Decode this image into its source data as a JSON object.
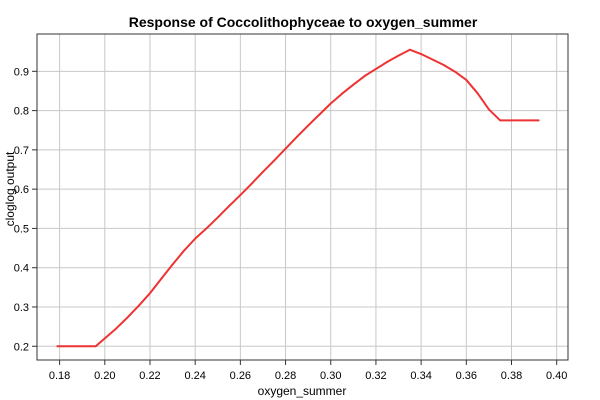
{
  "chart_data": {
    "type": "line",
    "title": "Response of Coccolithophyceae to oxygen_summer",
    "xlabel": "oxygen_summer",
    "ylabel": "cloglog output",
    "xlim": [
      0.17,
      0.405
    ],
    "ylim": [
      0.165,
      0.995
    ],
    "x_ticks": [
      0.18,
      0.2,
      0.22,
      0.24,
      0.26,
      0.28,
      0.3,
      0.32,
      0.34,
      0.36,
      0.38,
      0.4
    ],
    "x_tick_labels": [
      "0.18",
      "0.20",
      "0.22",
      "0.24",
      "0.26",
      "0.28",
      "0.30",
      "0.32",
      "0.34",
      "0.36",
      "0.38",
      "0.40"
    ],
    "y_ticks": [
      0.2,
      0.3,
      0.4,
      0.5,
      0.6,
      0.7,
      0.8,
      0.9
    ],
    "y_tick_labels": [
      "0.2",
      "0.3",
      "0.4",
      "0.5",
      "0.6",
      "0.7",
      "0.8",
      "0.9"
    ],
    "grid": true,
    "series": [
      {
        "color": "#ee3333",
        "x": [
          0.179,
          0.196,
          0.2,
          0.205,
          0.21,
          0.215,
          0.22,
          0.225,
          0.23,
          0.235,
          0.24,
          0.245,
          0.25,
          0.255,
          0.26,
          0.265,
          0.27,
          0.275,
          0.28,
          0.285,
          0.29,
          0.295,
          0.3,
          0.305,
          0.31,
          0.315,
          0.32,
          0.325,
          0.33,
          0.335,
          0.34,
          0.345,
          0.35,
          0.355,
          0.36,
          0.365,
          0.37,
          0.375,
          0.385,
          0.392
        ],
        "y": [
          0.2,
          0.2,
          0.22,
          0.245,
          0.273,
          0.303,
          0.335,
          0.372,
          0.408,
          0.443,
          0.474,
          0.5,
          0.528,
          0.557,
          0.585,
          0.614,
          0.644,
          0.673,
          0.703,
          0.733,
          0.762,
          0.79,
          0.818,
          0.843,
          0.866,
          0.888,
          0.906,
          0.924,
          0.94,
          0.955,
          0.944,
          0.93,
          0.916,
          0.899,
          0.878,
          0.844,
          0.803,
          0.775,
          0.775,
          0.775
        ]
      }
    ]
  }
}
